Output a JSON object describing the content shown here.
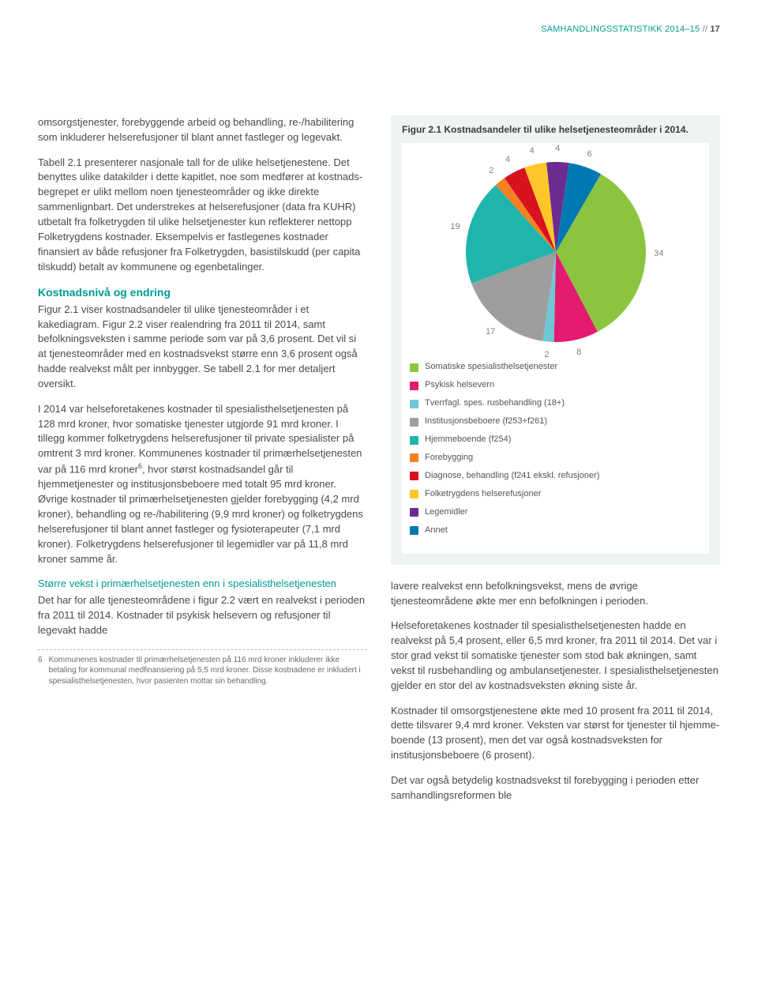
{
  "header": {
    "title": "SAMHANDLINGSSTATISTIKK 2014–15",
    "separator": "//",
    "page": "17"
  },
  "left": {
    "p1": "omsorgstjenester, forebyggende arbeid og behandling, re-/habilitering som inkluderer helse­refusjoner til blant annet fastleger og legevakt.",
    "p2": "Tabell 2.1 presenterer nasjonale tall for de ulike helsetjenestene. Det benyttes ulike datakilder i dette kapitlet, noe som medfører at kostnads­begrepet er ulikt mellom noen tjenesteområder og ikke direkte sammenlignbart. Det understrekes at helserefusjoner (data fra KUHR) utbetalt fra folketrygden til ulike helsetjenester kun reflekterer nettopp Folketrygdens kostnader. Eksempelvis er fastlegenes kostnader finansiert av både refusjoner fra Folketrygden, basistilskudd (per capita tilskudd) betalt av kommunene og egenbetalinger.",
    "h1": "Kostnadsnivå og endring",
    "p3": "Figur 2.1 viser kostnadsandeler til ulike tjeneste­områder i et kakediagram. Figur 2.2 viser realendring fra 2011 til 2014, samt befolkningsveksten i samme periode som var på 3,6 prosent. Det vil si at tjeneste­områder med en kostnadsvekst større enn 3,6 prosent også hadde realvekst målt per innbygger. Se tabell 2.1 for mer detaljert oversikt.",
    "p4a": "I 2014 var helseforetakenes kostnader til spesialist­helsetjenesten på 128 mrd kroner, hvor somatiske tjenester utgjorde 91 mrd kroner. I tillegg kommer folketrygdens helserefusjoner til private spesialister på omtrent 3 mrd kroner. Kommunenes kostnader til primærhelsetjenesten var på 116 mrd kroner",
    "p4b": ", hvor størst kostnadsandel går til hjemmetjenester og institusjonsbeboere med totalt 95 mrd kroner. Øvrige kostnader til primærhelsetjenesten gjelder forebygging (4,2 mrd kroner), behandling og re-/habilitering (9,9 mrd kroner) og folketrygdens helserefusjoner til blant annet fastleger og fysio­terapeuter (7,1 mrd kroner). Folketrygdens helse­refusjoner til legemidler var på 11,8 mrd kroner samme år.",
    "h2": "Større vekst i primærhelsetjenesten enn i spesialisthelsetjenesten",
    "p5": "Det har for alle tjenesteområdene i figur 2.2 vært en realvekst i perioden fra 2011 til 2014. Kostnader til psykisk helsevern og refusjoner til legevakt hadde",
    "fn_num": "6",
    "fn_text": "Kommunenes kostnader til primærhelsetjenesten på 116 mrd kroner inkluderer ikke betaling for kommunal medfinansiering på 5,5 mrd kroner. Disse kostnadene er inkludert i spesialisthelse­tjenesten, hvor pasienten mottar sin behandling."
  },
  "figure": {
    "title": "Figur 2.1 Kostnadsandeler til ulike helsetjeneste­områder i 2014.",
    "type": "pie",
    "background_color": "#ffffff",
    "box_color": "#eef3f3",
    "slices": [
      {
        "label": "Somatiske spesialisthelsetjenester",
        "value": 34,
        "color": "#8bc53f",
        "show_value": true
      },
      {
        "label": "Psykisk helsevern",
        "value": 8,
        "color": "#e31b6f",
        "show_value": true
      },
      {
        "label": "Tverrfagl. spes. rusbehandling (18+)",
        "value": 2,
        "color": "#6fc7d6",
        "show_value": true
      },
      {
        "label": "Institusjonsbeboere (f253+f261)",
        "value": 17,
        "color": "#9e9e9e",
        "show_value": true
      },
      {
        "label": "Hjemmeboende (f254)",
        "value": 19,
        "color": "#1fb5ad",
        "show_value": true
      },
      {
        "label": "Forebygging",
        "value": 2,
        "color": "#f58220",
        "show_value": true
      },
      {
        "label": "Diagnose, behandling  (f241 ekskl. refusjoner)",
        "value": 4,
        "color": "#d8121e",
        "show_value": true
      },
      {
        "label": "Folketrygdens helserefusjoner",
        "value": 4,
        "color": "#ffc629",
        "show_value": true
      },
      {
        "label": "Legemidler",
        "value": 4,
        "color": "#6a2c91",
        "show_value": true
      },
      {
        "label": "Annet",
        "value": 6,
        "color": "#0079b2",
        "show_value": true
      }
    ],
    "label_fontsize": 11,
    "label_color": "#808080",
    "legend_fontsize": 11,
    "start_angle_deg": -60
  },
  "right": {
    "p1": "lavere realvekst enn befolkningsvekst, mens de øvrige tjenesteområdene økte mer enn befolkningen i perioden.",
    "p2": "Helseforetakenes kostnader til spesialisthelse­tjenesten hadde en realvekst på 5,4 prosent, eller 6,5 mrd kroner, fra 2011 til 2014. Det var i stor grad vekst til somatiske tjenester som stod bak økningen, samt vekst til rusbehandling og ambulansetjenester. I spesialisthelsetjenesten gjelder en stor del av kostnadsveksten økning siste år.",
    "p3": "Kostnader til omsorgstjenestene økte med 10 prosent fra 2011 til 2014, dette tilsvarer 9,4 mrd kroner. Veksten var størst for tjenester til hjemme­boende (13 prosent), men det var også kostnads­veksten for institusjonsbeboere (6 prosent).",
    "p4": "Det var også betydelig kostnadsvekst til forebygging i perioden etter samhandlingsreformen ble"
  }
}
